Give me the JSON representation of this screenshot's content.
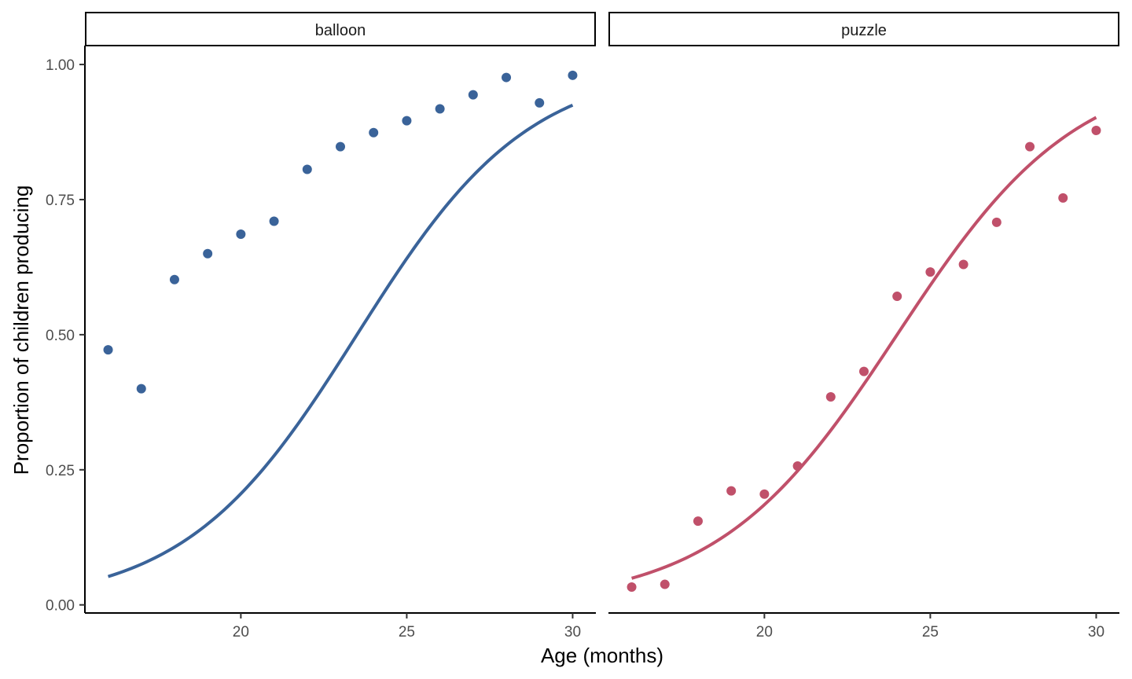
{
  "chart_data": {
    "type": "scatter",
    "xlabel": "Age (months)",
    "ylabel": "Proportion of children producing",
    "xlim": [
      15.3,
      30.7
    ],
    "ylim": [
      -0.015,
      1.035
    ],
    "x_ticks": [
      20,
      25,
      30
    ],
    "y_ticks": [
      0.0,
      0.25,
      0.5,
      0.75,
      1.0
    ],
    "y_tick_labels": [
      "0.00",
      "0.25",
      "0.50",
      "0.75",
      "1.00"
    ],
    "grid": false,
    "legend": "none",
    "facets": [
      {
        "name": "balloon",
        "color": "#3A6399",
        "points": {
          "x": [
            16,
            17,
            18,
            19,
            20,
            21,
            22,
            23,
            24,
            25,
            26,
            27,
            28,
            29,
            30
          ],
          "y": [
            0.472,
            0.4,
            0.602,
            0.65,
            0.686,
            0.71,
            0.806,
            0.848,
            0.874,
            0.896,
            0.918,
            0.944,
            0.976,
            0.929,
            0.98
          ]
        },
        "fit": {
          "x0": 23.5,
          "k": 0.386,
          "from": 16,
          "to": 30
        }
      },
      {
        "name": "puzzle",
        "color": "#C0506A",
        "points": {
          "x": [
            16,
            17,
            18,
            19,
            20,
            21,
            22,
            23,
            24,
            25,
            26,
            27,
            28,
            29,
            30
          ],
          "y": [
            0.033,
            0.038,
            0.155,
            0.211,
            0.205,
            0.257,
            0.385,
            0.432,
            0.571,
            0.616,
            0.63,
            0.708,
            0.848,
            0.753,
            0.878
          ]
        },
        "fit": {
          "x0": 24.0,
          "k": 0.37,
          "from": 16,
          "to": 30
        }
      }
    ]
  }
}
